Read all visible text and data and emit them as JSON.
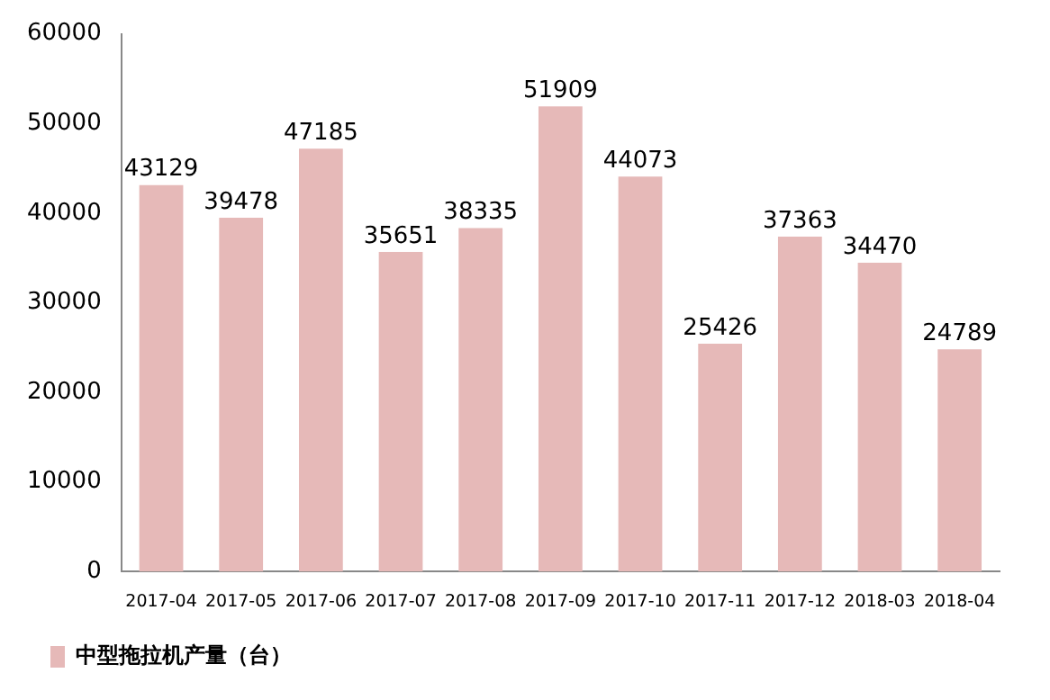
{
  "chart_data": {
    "type": "bar",
    "categories": [
      "2017-04",
      "2017-05",
      "2017-06",
      "2017-07",
      "2017-08",
      "2017-09",
      "2017-10",
      "2017-11",
      "2017-12",
      "2018-03",
      "2018-04"
    ],
    "series": [
      {
        "name": "中型拖拉机产量（台）",
        "color": "#e6b9b8",
        "values": [
          43129,
          39478,
          47185,
          35651,
          38335,
          51909,
          44073,
          25426,
          37363,
          34470,
          24789
        ]
      }
    ],
    "ylim": [
      0,
      60000
    ],
    "yticks": [
      0,
      10000,
      20000,
      30000,
      40000,
      50000,
      60000
    ],
    "data_labels": true,
    "legend": "bottom left",
    "grid": false
  }
}
